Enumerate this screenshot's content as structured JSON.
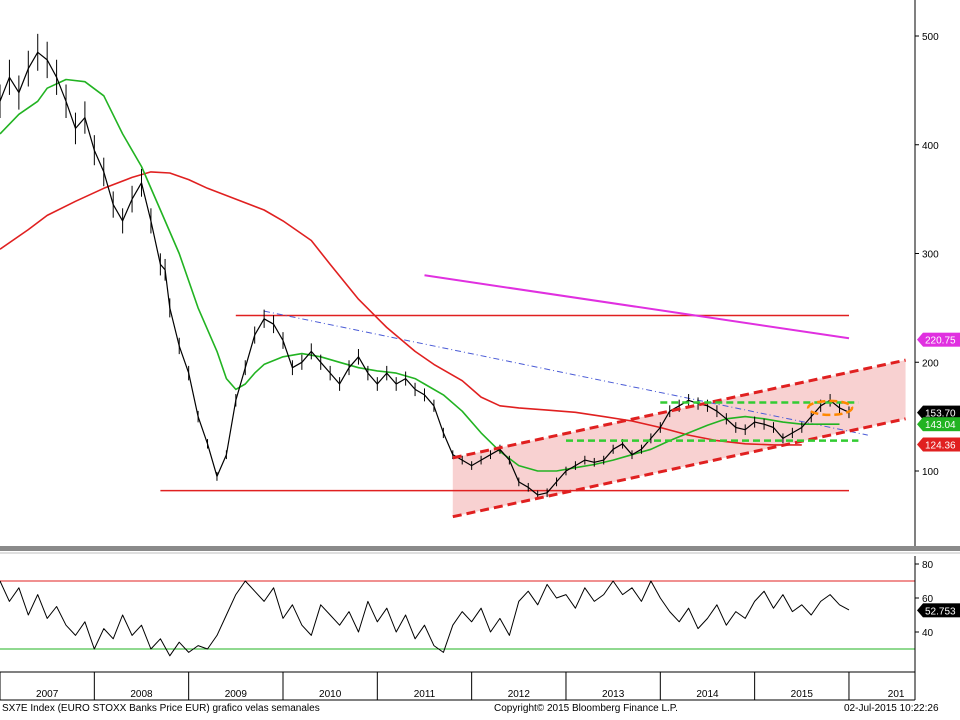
{
  "footer": {
    "left": "SX7E Index (EURO STOXX Banks Price EUR) grafico velas semanales",
    "center": "Copyright© 2015 Bloomberg Finance L.P.",
    "right": "02-Jul-2015 10:22:26"
  },
  "colors": {
    "price": "#000000",
    "ma_short": "#22b322",
    "ma_long": "#e02020",
    "support_resistance": "#e02020",
    "channel": "#e02020",
    "channel_fill": "#f6c6c6",
    "green_dashed": "#33cc33",
    "trendline": "#4a5bd6",
    "magenta": "#e030e0",
    "orange": "#ff8800",
    "rsi_bands_high": "#e02020",
    "rsi_bands_low": "#22b322"
  },
  "chart_data": [
    {
      "type": "line",
      "title": "",
      "xlabel": "",
      "ylabel": "",
      "x_tick_labels": [
        "2007",
        "2008",
        "2009",
        "2010",
        "2011",
        "2012",
        "2013",
        "2014",
        "2015",
        "201"
      ],
      "y_tick_labels": [
        "100",
        "200",
        "300",
        "400",
        "500"
      ],
      "ylim": [
        40,
        540
      ],
      "xlim": [
        2006.5,
        2016.2
      ],
      "grid": false,
      "badges": [
        {
          "label": "220.75",
          "value": 220.75,
          "color": "#e030e0",
          "text_color": "#ffffff"
        },
        {
          "label": "153.70",
          "value": 153.7,
          "color": "#000000",
          "text_color": "#ffffff"
        },
        {
          "label": "143.04",
          "value": 143.04,
          "color": "#22b322",
          "text_color": "#ffffff"
        },
        {
          "label": "124.36",
          "value": 124.36,
          "color": "#e02020",
          "text_color": "#ffffff"
        }
      ],
      "price_series": {
        "x": [
          2006.5,
          2006.6,
          2006.7,
          2006.8,
          2006.9,
          2007.0,
          2007.1,
          2007.2,
          2007.3,
          2007.4,
          2007.5,
          2007.6,
          2007.7,
          2007.8,
          2007.9,
          2008.0,
          2008.1,
          2008.2,
          2008.25,
          2008.3,
          2008.4,
          2008.5,
          2008.6,
          2008.7,
          2008.8,
          2008.9,
          2009.0,
          2009.1,
          2009.2,
          2009.3,
          2009.4,
          2009.5,
          2009.6,
          2009.7,
          2009.8,
          2009.9,
          2010.0,
          2010.1,
          2010.2,
          2010.3,
          2010.4,
          2010.5,
          2010.6,
          2010.7,
          2010.8,
          2010.9,
          2011.0,
          2011.1,
          2011.2,
          2011.3,
          2011.4,
          2011.5,
          2011.6,
          2011.7,
          2011.8,
          2011.9,
          2012.0,
          2012.1,
          2012.2,
          2012.3,
          2012.4,
          2012.5,
          2012.6,
          2012.7,
          2012.8,
          2012.9,
          2013.0,
          2013.1,
          2013.2,
          2013.3,
          2013.4,
          2013.5,
          2013.6,
          2013.7,
          2013.8,
          2013.9,
          2014.0,
          2014.1,
          2014.2,
          2014.3,
          2014.4,
          2014.5,
          2014.6,
          2014.7,
          2014.8,
          2014.9,
          2015.0,
          2015.1,
          2015.2,
          2015.3,
          2015.4,
          2015.5
        ],
        "y": [
          440,
          462,
          448,
          470,
          485,
          478,
          462,
          440,
          415,
          425,
          395,
          375,
          345,
          330,
          350,
          365,
          330,
          290,
          285,
          250,
          215,
          190,
          150,
          125,
          95,
          115,
          165,
          195,
          225,
          240,
          235,
          220,
          195,
          200,
          210,
          200,
          190,
          180,
          195,
          205,
          190,
          180,
          190,
          180,
          185,
          175,
          170,
          160,
          135,
          115,
          110,
          105,
          110,
          115,
          120,
          110,
          90,
          85,
          78,
          80,
          90,
          100,
          105,
          110,
          108,
          110,
          120,
          125,
          115,
          120,
          130,
          140,
          155,
          160,
          165,
          162,
          160,
          155,
          148,
          140,
          138,
          145,
          143,
          140,
          130,
          135,
          140,
          150,
          160,
          165,
          158,
          154
        ]
      },
      "ma_short_series": {
        "x": [
          2006.5,
          2006.7,
          2006.9,
          2007.0,
          2007.2,
          2007.4,
          2007.6,
          2007.8,
          2008.0,
          2008.2,
          2008.4,
          2008.6,
          2008.8,
          2008.9,
          2009.0,
          2009.1,
          2009.2,
          2009.3,
          2009.5,
          2009.7,
          2009.9,
          2010.1,
          2010.3,
          2010.5,
          2010.7,
          2010.9,
          2011.0,
          2011.2,
          2011.4,
          2011.6,
          2011.8,
          2012.0,
          2012.2,
          2012.4,
          2012.6,
          2012.8,
          2013.0,
          2013.2,
          2013.4,
          2013.6,
          2013.8,
          2014.0,
          2014.2,
          2014.4,
          2014.6,
          2014.8,
          2015.0,
          2015.2,
          2015.4
        ],
        "y": [
          410,
          428,
          440,
          452,
          460,
          458,
          445,
          410,
          380,
          340,
          300,
          250,
          210,
          185,
          175,
          180,
          190,
          198,
          205,
          208,
          205,
          200,
          195,
          192,
          190,
          185,
          180,
          170,
          155,
          135,
          118,
          105,
          100,
          100,
          103,
          106,
          110,
          115,
          120,
          128,
          135,
          142,
          148,
          150,
          148,
          145,
          143,
          143,
          143
        ]
      },
      "ma_long_series": {
        "x": [
          2006.5,
          2006.8,
          2007.0,
          2007.3,
          2007.6,
          2007.9,
          2008.1,
          2008.3,
          2008.5,
          2008.7,
          2009.0,
          2009.3,
          2009.5,
          2009.8,
          2010.0,
          2010.3,
          2010.6,
          2010.9,
          2011.1,
          2011.4,
          2011.6,
          2011.8,
          2012.0,
          2012.3,
          2012.6,
          2012.9,
          2013.2,
          2013.5,
          2013.8,
          2014.1,
          2014.4,
          2014.7,
          2015.0
        ],
        "y": [
          304,
          322,
          335,
          348,
          360,
          370,
          375,
          374,
          368,
          360,
          350,
          340,
          330,
          312,
          290,
          258,
          232,
          210,
          198,
          183,
          168,
          160,
          158,
          156,
          154,
          150,
          146,
          140,
          133,
          128,
          125,
          124,
          124
        ]
      },
      "magenta_line": {
        "x": [
          2011.0,
          2015.5
        ],
        "y": [
          280,
          222
        ]
      },
      "resistance_line": {
        "x": [
          2009.0,
          2015.5
        ],
        "y": [
          243,
          243
        ]
      },
      "support_line": {
        "x": [
          2008.2,
          2015.5
        ],
        "y": [
          82,
          82
        ]
      },
      "blue_trendline": {
        "x": [
          2009.3,
          2015.7
        ],
        "y": [
          247,
          133
        ]
      },
      "channel_upper": {
        "x": [
          2011.3,
          2016.1
        ],
        "y": [
          112,
          202
        ]
      },
      "channel_lower": {
        "x": [
          2011.3,
          2016.1
        ],
        "y": [
          58,
          148
        ]
      },
      "green_dashed_levels": [
        {
          "x": [
            2012.5,
            2015.6
          ],
          "y": [
            128,
            128
          ]
        },
        {
          "x": [
            2013.5,
            2015.6
          ],
          "y": [
            163,
            163
          ]
        }
      ],
      "orange_ellipse": {
        "x": 2015.3,
        "y": 158
      }
    },
    {
      "type": "line",
      "title": "",
      "y_tick_labels": [
        "40",
        "60",
        "80"
      ],
      "ylim": [
        22,
        86
      ],
      "badge": {
        "label": "52.753",
        "value": 52.753
      },
      "bands": [
        70,
        30
      ],
      "rsi_series": {
        "x": [
          2006.5,
          2006.6,
          2006.7,
          2006.8,
          2006.9,
          2007.0,
          2007.1,
          2007.2,
          2007.3,
          2007.4,
          2007.5,
          2007.6,
          2007.7,
          2007.8,
          2007.9,
          2008.0,
          2008.1,
          2008.2,
          2008.3,
          2008.4,
          2008.5,
          2008.6,
          2008.7,
          2008.8,
          2008.9,
          2009.0,
          2009.1,
          2009.2,
          2009.3,
          2009.4,
          2009.5,
          2009.6,
          2009.7,
          2009.8,
          2009.9,
          2010.0,
          2010.1,
          2010.2,
          2010.3,
          2010.4,
          2010.5,
          2010.6,
          2010.7,
          2010.8,
          2010.9,
          2011.0,
          2011.1,
          2011.2,
          2011.3,
          2011.4,
          2011.5,
          2011.6,
          2011.7,
          2011.8,
          2011.9,
          2012.0,
          2012.1,
          2012.2,
          2012.3,
          2012.4,
          2012.5,
          2012.6,
          2012.7,
          2012.8,
          2012.9,
          2013.0,
          2013.1,
          2013.2,
          2013.3,
          2013.4,
          2013.5,
          2013.6,
          2013.7,
          2013.8,
          2013.9,
          2014.0,
          2014.1,
          2014.2,
          2014.3,
          2014.4,
          2014.5,
          2014.6,
          2014.7,
          2014.8,
          2014.9,
          2015.0,
          2015.1,
          2015.2,
          2015.3,
          2015.4,
          2015.5
        ],
        "y": [
          70,
          58,
          66,
          50,
          62,
          48,
          55,
          44,
          38,
          46,
          30,
          42,
          36,
          50,
          38,
          44,
          30,
          36,
          26,
          34,
          28,
          32,
          30,
          38,
          50,
          62,
          70,
          64,
          58,
          66,
          48,
          56,
          44,
          38,
          56,
          50,
          44,
          52,
          40,
          58,
          46,
          54,
          40,
          50,
          36,
          44,
          32,
          28,
          44,
          52,
          46,
          54,
          40,
          48,
          38,
          58,
          64,
          56,
          68,
          60,
          62,
          54,
          66,
          58,
          62,
          70,
          62,
          66,
          58,
          70,
          60,
          52,
          46,
          54,
          42,
          48,
          56,
          44,
          52,
          48,
          58,
          64,
          54,
          62,
          52,
          56,
          50,
          58,
          62,
          56,
          53
        ]
      }
    }
  ]
}
